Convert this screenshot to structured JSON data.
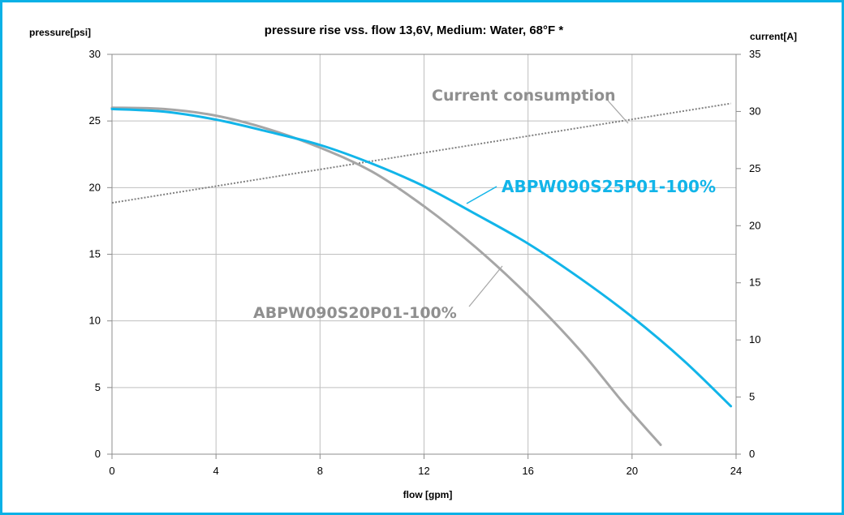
{
  "chart_data": {
    "type": "line",
    "title": "pressure rise vss. flow 13,6V, Medium: Water, 68°F *",
    "xlabel": "flow [gpm]",
    "ylabel": "pressure[psi]",
    "y2label": "current[A]",
    "xlim": [
      0,
      24
    ],
    "ylim": [
      0,
      30
    ],
    "y2lim": [
      0,
      35
    ],
    "xticks": [
      "0",
      "4",
      "8",
      "12",
      "16",
      "20",
      "24"
    ],
    "yticks": [
      "0",
      "5",
      "10",
      "15",
      "20",
      "25",
      "30"
    ],
    "y2ticks": [
      "0",
      "5",
      "10",
      "15",
      "20",
      "25",
      "30",
      "35"
    ],
    "grid": true,
    "colors": {
      "blue": "#12b5e9",
      "gray": "#a6a6a6",
      "dotted": "#808080",
      "frame": "#0bb1e6"
    },
    "series": [
      {
        "name": "ABPW090S25P01-100%",
        "axis": "left",
        "color": "#12b5e9",
        "x": [
          0,
          2,
          4,
          6,
          8,
          10,
          12,
          14,
          16,
          18,
          20,
          22,
          23.8
        ],
        "y": [
          25.9,
          25.7,
          25.1,
          24.2,
          23.2,
          21.8,
          20.1,
          18.0,
          15.8,
          13.2,
          10.3,
          7.0,
          3.6
        ]
      },
      {
        "name": "ABPW090S20P01-100%",
        "axis": "left",
        "color": "#a6a6a6",
        "x": [
          0,
          2,
          4,
          6,
          8,
          10,
          12,
          14,
          16,
          18,
          19.6,
          21.1
        ],
        "y": [
          26.0,
          25.9,
          25.4,
          24.4,
          23.0,
          21.2,
          18.6,
          15.5,
          11.9,
          7.8,
          4.0,
          0.7
        ]
      },
      {
        "name": "Current consumption",
        "axis": "right",
        "color": "#808080",
        "dashed": true,
        "x": [
          0,
          23.8
        ],
        "y": [
          22.0,
          30.7
        ]
      }
    ],
    "annotations": [
      {
        "text": "Current consumption",
        "series": 2
      },
      {
        "text": "ABPW090S25P01-100%",
        "series": 0
      },
      {
        "text": "ABPW090S20P01-100%",
        "series": 1
      }
    ]
  }
}
